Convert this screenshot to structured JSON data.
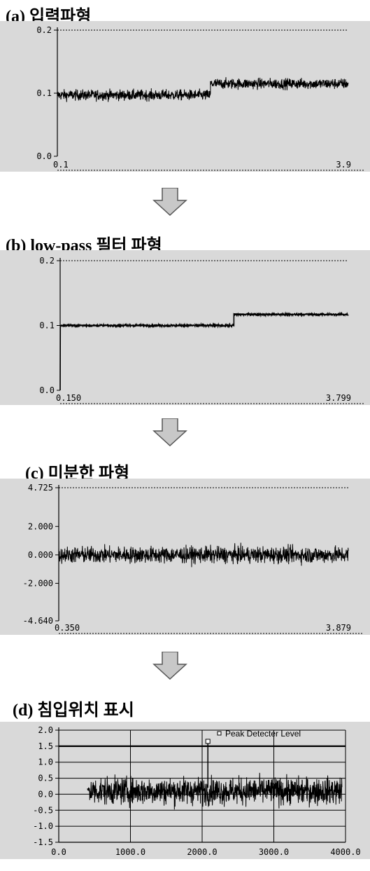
{
  "colors": {
    "plot_bg": "#d9d9d9",
    "signal": "#000000",
    "arrow_fill": "#c8c8c8",
    "arrow_stroke": "#555555"
  },
  "arrow_icon": "down-arrow-icon",
  "chart_data": [
    {
      "id": "a",
      "type": "line",
      "title": "(a) 입력파형",
      "xlim": [
        0.1,
        3.9
      ],
      "ylim": [
        0.0,
        0.2
      ],
      "x_tick_labels": [
        "0.1",
        "3.9"
      ],
      "y_tick_labels": [
        "0.2",
        "0.1",
        "0.0"
      ],
      "grid": false,
      "series": [
        {
          "segments": [
            {
              "x_start": 0.1,
              "x_end": 2.1,
              "mean": 0.097,
              "noise": 0.008
            },
            {
              "x_start": 2.1,
              "x_end": 3.9,
              "mean": 0.115,
              "noise": 0.008
            }
          ]
        }
      ]
    },
    {
      "id": "b",
      "type": "line",
      "title": "(b) low-pass 필터 파형",
      "xlim": [
        0.15,
        3.799
      ],
      "ylim": [
        0.0,
        0.2
      ],
      "x_tick_labels": [
        "0.150",
        "3.799"
      ],
      "y_tick_labels": [
        "0.2",
        "0.1",
        "0.0"
      ],
      "grid": false,
      "series": [
        {
          "segments": [
            {
              "x_start": 0.15,
              "x_end": 2.35,
              "mean": 0.1,
              "noise": 0.0015
            },
            {
              "x_start": 2.35,
              "x_end": 3.799,
              "mean": 0.117,
              "noise": 0.0015
            }
          ]
        }
      ]
    },
    {
      "id": "c",
      "type": "line",
      "title": "(c) 미분한 파형",
      "xlim": [
        0.35,
        3.879
      ],
      "ylim": [
        -4.64,
        4.725
      ],
      "x_tick_labels": [
        "0.350",
        "3.879"
      ],
      "y_tick_labels": [
        "4.725",
        "2.000",
        "0.000",
        "-2.000",
        "-4.640"
      ],
      "grid": false,
      "series": [
        {
          "segments": [
            {
              "x_start": 0.35,
              "x_end": 3.879,
              "mean": 0.0,
              "noise": 0.55
            }
          ]
        }
      ]
    },
    {
      "id": "d",
      "type": "line",
      "title": "(d) 침입위치 표시",
      "xlim": [
        0,
        4000
      ],
      "ylim": [
        -1.5,
        2.0
      ],
      "x_tick_labels": [
        "0.0",
        "1000.0",
        "2000.0",
        "3000.0",
        "4000.0"
      ],
      "y_tick_labels": [
        "2.0",
        "1.5",
        "1.0",
        "0.5",
        "0.0",
        "-0.5",
        "-1.0",
        "-1.5"
      ],
      "grid": true,
      "legend": "Peak Detecter Level",
      "threshold": 1.5,
      "series": [
        {
          "segments": [
            {
              "x_start": 400,
              "x_end": 3950,
              "mean": 0.1,
              "noise": 0.4
            }
          ]
        }
      ],
      "peak": {
        "x": 2080,
        "y": 1.65
      }
    }
  ]
}
